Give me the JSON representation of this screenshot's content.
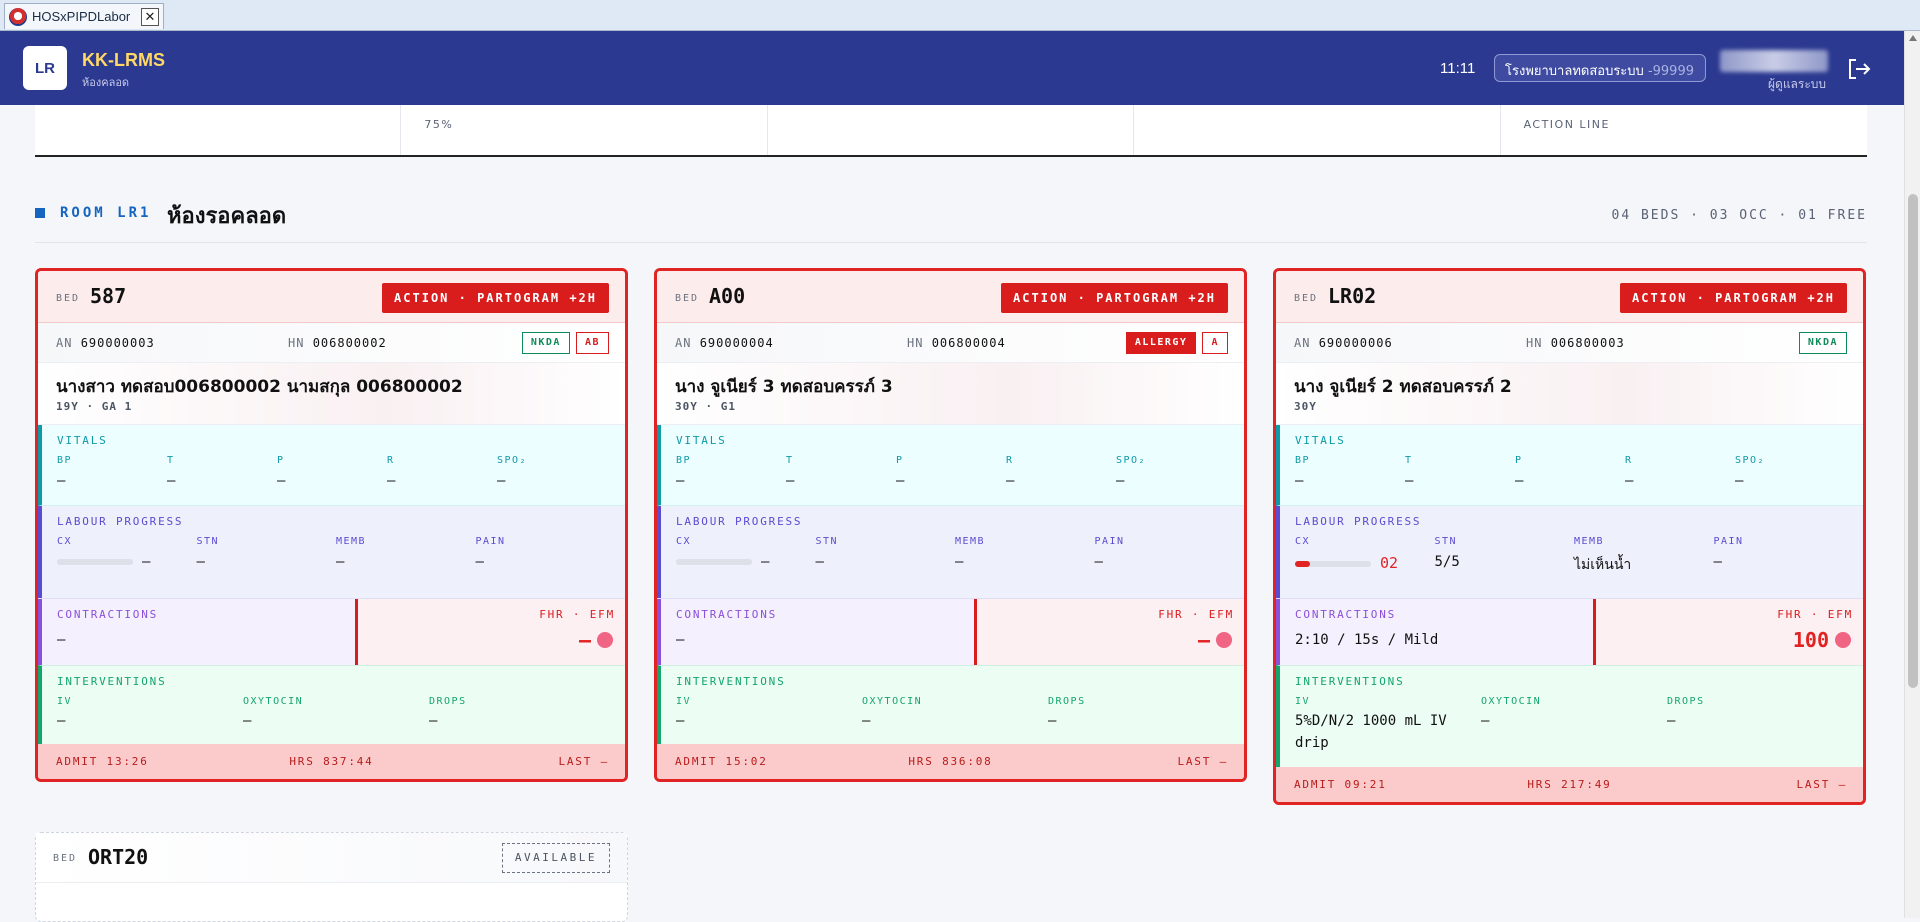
{
  "window": {
    "tab_title": "HOSxPIPDLabor",
    "close": "✕"
  },
  "header": {
    "logo": "LR",
    "title": "KK-LRMS",
    "subtitle": "ห้องคลอด",
    "time": "11:11",
    "hospital_name": "โรงพยาบาลทดสอบระบบ",
    "hospital_code": "-99999",
    "user_role": "ผู้ดูแลระบบ"
  },
  "legend": {
    "cells": [
      "",
      "75%",
      "",
      "",
      "ACTION LINE"
    ]
  },
  "room": {
    "code": "ROOM LR1",
    "name": "ห้องรอคลอด",
    "stats": "04 BEDS · 03 OCC · 01 FREE"
  },
  "labels": {
    "bed": "BED",
    "an": "AN",
    "hn": "HN",
    "vitals": "VITALS",
    "bp": "BP",
    "t": "T",
    "p": "P",
    "r": "R",
    "spo2": "SPO₂",
    "labour": "LABOUR PROGRESS",
    "cx": "CX",
    "stn": "STN",
    "memb": "MEMB",
    "pain": "PAIN",
    "contractions": "CONTRACTIONS",
    "fhr": "FHR · EFM",
    "interventions": "INTERVENTIONS",
    "iv": "IV",
    "oxytocin": "OXYTOCIN",
    "drops": "DROPS"
  },
  "beds": [
    {
      "bed": "587",
      "action": "ACTION · PARTOGRAM +2H",
      "an": "690000003",
      "hn": "006800002",
      "badges": [
        {
          "text": "NKDA",
          "style": "green"
        },
        {
          "text": "AB",
          "style": "redo"
        }
      ],
      "name": "นางสาว ทดสอบ006800002 นามสกุล 006800002",
      "sub": "19Y · GA 1",
      "vitals": {
        "bp": "—",
        "t": "—",
        "p": "—",
        "r": "—",
        "spo2": "—"
      },
      "labour": {
        "cx": "—",
        "cx_pct": 0,
        "stn": "—",
        "memb": "—",
        "pain": "—"
      },
      "contractions": "—",
      "fhr": "—",
      "iv": "—",
      "oxytocin": "—",
      "drops": "—",
      "admit": "ADMIT 13:26",
      "hrs": "HRS 837:44",
      "last": "LAST —"
    },
    {
      "bed": "A00",
      "action": "ACTION · PARTOGRAM +2H",
      "an": "690000004",
      "hn": "006800004",
      "badges": [
        {
          "text": "ALLERGY",
          "style": "redf"
        },
        {
          "text": "A",
          "style": "redo"
        }
      ],
      "name": "นาง จูเนียร์ 3 ทดสอบครรภ์ 3",
      "sub": "30Y · G1",
      "vitals": {
        "bp": "—",
        "t": "—",
        "p": "—",
        "r": "—",
        "spo2": "—"
      },
      "labour": {
        "cx": "—",
        "cx_pct": 0,
        "stn": "—",
        "memb": "—",
        "pain": "—"
      },
      "contractions": "—",
      "fhr": "—",
      "iv": "—",
      "oxytocin": "—",
      "drops": "—",
      "admit": "ADMIT 15:02",
      "hrs": "HRS 836:08",
      "last": "LAST —"
    },
    {
      "bed": "LR02",
      "action": "ACTION · PARTOGRAM +2H",
      "an": "690000006",
      "hn": "006800003",
      "badges": [
        {
          "text": "NKDA",
          "style": "green"
        }
      ],
      "name": "นาง จูเนียร์ 2 ทดสอบครรภ์ 2",
      "sub": "30Y",
      "vitals": {
        "bp": "—",
        "t": "—",
        "p": "—",
        "r": "—",
        "spo2": "—"
      },
      "labour": {
        "cx": "02",
        "cx_pct": 20,
        "stn": "5/5",
        "memb": "ไม่เห็นน้ำ",
        "pain": "—"
      },
      "contractions": "2:10 / 15s / Mild",
      "fhr": "100",
      "iv": "5%D/N/2 1000 mL IV drip",
      "oxytocin": "—",
      "drops": "—",
      "admit": "ADMIT 09:21",
      "hrs": "HRS 217:49",
      "last": "LAST —"
    }
  ],
  "available": {
    "bed": "ORT20",
    "status": "AVAILABLE"
  }
}
